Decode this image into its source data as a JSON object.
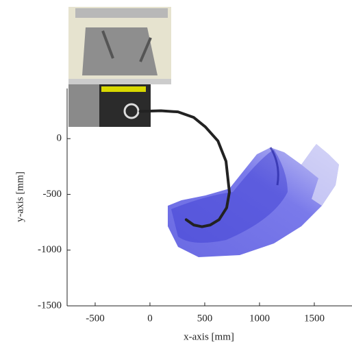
{
  "chart_data": {
    "type": "line",
    "x_label": "x-axis [mm]",
    "y_label": "y-axis [mm]",
    "x": [
      -90,
      100,
      256,
      400,
      506,
      620,
      694,
      725,
      700,
      631,
      550,
      475,
      400,
      331
    ],
    "values": [
      245,
      250,
      240,
      190,
      105,
      -20,
      -203,
      -480,
      -620,
      -727,
      -775,
      -790,
      -775,
      -727
    ],
    "color": "#222222",
    "xlim": [
      -756,
      1844
    ],
    "xticks": [
      -500,
      0,
      500,
      1000,
      1500
    ],
    "ylim": [
      -1500,
      450
    ],
    "yticks": [
      -1500,
      -1000,
      -500,
      0
    ]
  }
}
